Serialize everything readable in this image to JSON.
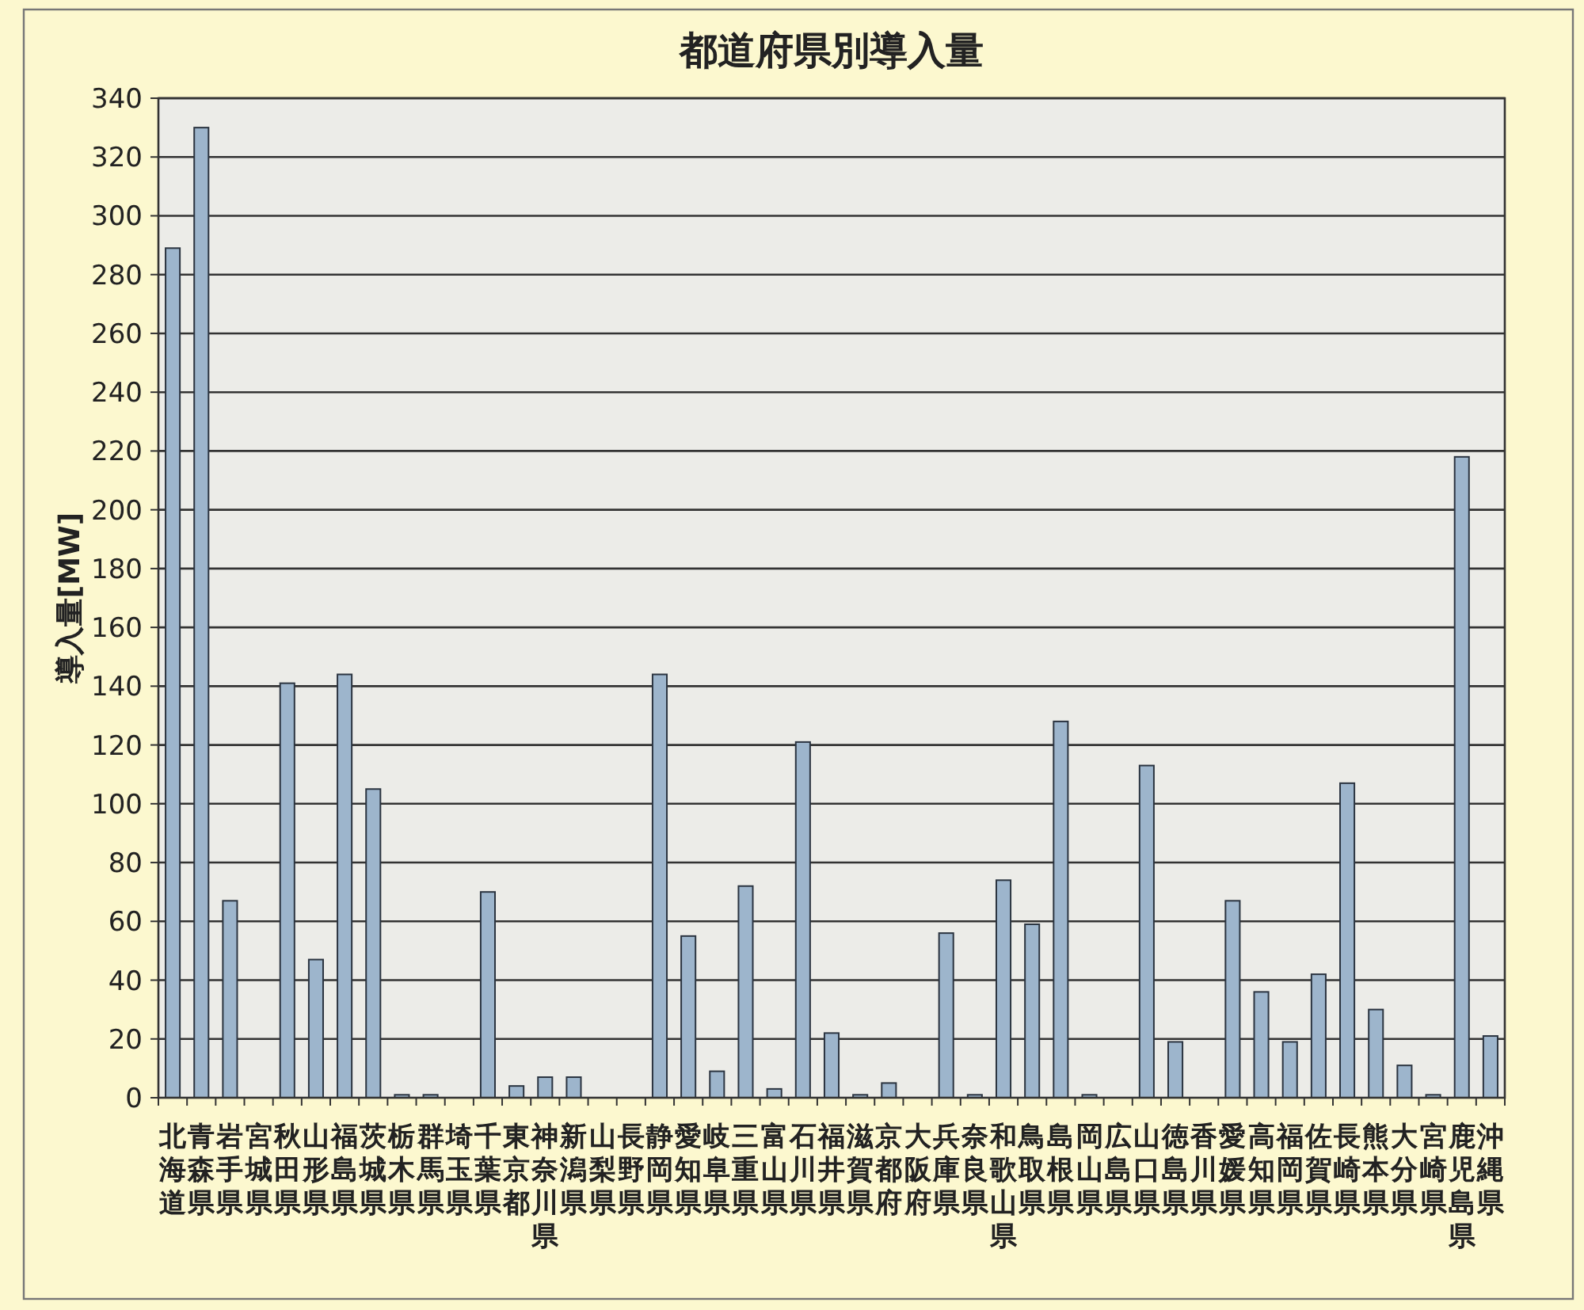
{
  "chart_data": {
    "type": "bar",
    "title": "都道府県別導入量",
    "ylabel": "導入量[MW]",
    "categories": [
      "北海道",
      "青森県",
      "岩手県",
      "宮城県",
      "秋田県",
      "山形県",
      "福島県",
      "茨城県",
      "栃木県",
      "群馬県",
      "埼玉県",
      "千葉県",
      "東京都",
      "神奈川県",
      "新潟県",
      "山梨県",
      "長野県",
      "静岡県",
      "愛知県",
      "岐阜県",
      "三重県",
      "富山県",
      "石川県",
      "福井県",
      "滋賀県",
      "京都府",
      "大阪府",
      "兵庫県",
      "奈良県",
      "和歌山県",
      "鳥取県",
      "島根県",
      "岡山県",
      "広島県",
      "山口県",
      "徳島県",
      "香川県",
      "愛媛県",
      "高知県",
      "福岡県",
      "佐賀県",
      "長崎県",
      "熊本県",
      "大分県",
      "宮崎県",
      "鹿児島県",
      "沖縄県"
    ],
    "values": [
      289,
      330,
      67,
      0,
      141,
      47,
      144,
      105,
      1,
      1,
      0,
      70,
      4,
      7,
      7,
      0,
      0,
      144,
      55,
      9,
      72,
      3,
      121,
      22,
      1,
      5,
      0,
      56,
      1,
      74,
      59,
      128,
      1,
      0,
      113,
      19,
      0,
      67,
      36,
      19,
      42,
      107,
      30,
      11,
      1,
      218,
      21
    ],
    "color": "#9db5cc",
    "ylim": [
      0,
      340
    ],
    "yticks": [
      0,
      20,
      40,
      60,
      80,
      100,
      120,
      140,
      160,
      180,
      200,
      220,
      240,
      260,
      280,
      300,
      320,
      340
    ],
    "grid": "y"
  }
}
